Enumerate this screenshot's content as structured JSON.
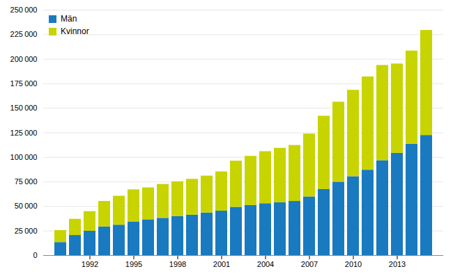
{
  "chart_data": {
    "type": "bar",
    "stacked": true,
    "categories": [
      null,
      null,
      "1992",
      null,
      null,
      "1995",
      null,
      null,
      "1998",
      null,
      null,
      "2001",
      null,
      null,
      "2004",
      null,
      null,
      "2007",
      null,
      null,
      "2010",
      null,
      null,
      "2013",
      null,
      null
    ],
    "series": [
      {
        "name": "Män",
        "color": "#1a7abf",
        "values": [
          13300,
          20500,
          24800,
          29200,
          31000,
          34000,
          36500,
          38000,
          39700,
          41200,
          43400,
          45300,
          49200,
          51100,
          52900,
          53800,
          55200,
          59800,
          67400,
          74800,
          80400,
          87000,
          96700,
          104200,
          113400,
          122400
        ]
      },
      {
        "name": "Kvinnor",
        "color": "#c8d400",
        "values": [
          12200,
          16500,
          20000,
          26000,
          29500,
          33000,
          32500,
          34500,
          35500,
          36500,
          37600,
          40000,
          47000,
          50000,
          53000,
          55500,
          57000,
          64000,
          74600,
          81500,
          88000,
          95000,
          97000,
          91000,
          95000,
          107000
        ]
      }
    ],
    "ylim": [
      0,
      250000
    ],
    "yticks": [
      0,
      {
        "value": 25000,
        "label": "25 000"
      },
      {
        "value": 50000,
        "label": "50 000"
      },
      {
        "value": 75000,
        "label": "75 000"
      },
      {
        "value": 100000,
        "label": "100 000"
      },
      {
        "value": 125000,
        "label": "125 000"
      },
      {
        "value": 150000,
        "label": "150 000"
      },
      {
        "value": 175000,
        "label": "175 000"
      },
      {
        "value": 200000,
        "label": "200 000"
      },
      {
        "value": 225000,
        "label": "225 000"
      },
      {
        "value": 250000,
        "label": "250 000"
      }
    ],
    "grid": true,
    "legend": "upper left"
  }
}
